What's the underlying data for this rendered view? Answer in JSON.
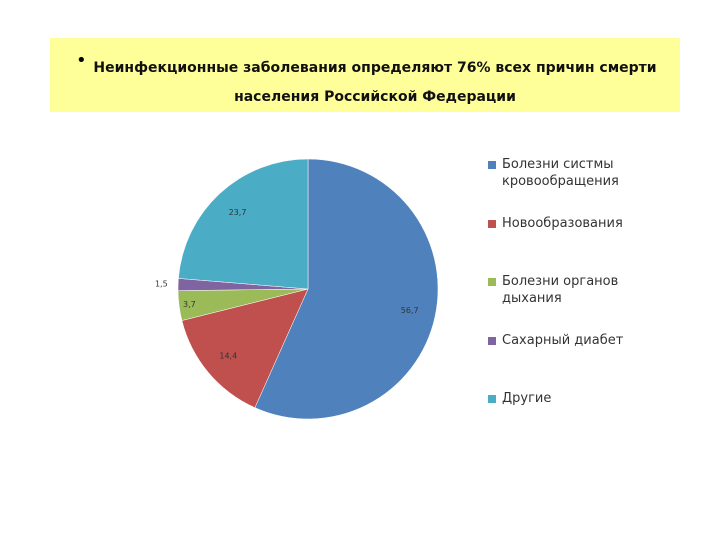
{
  "chart_data": {
    "type": "pie",
    "title": "Неинфекционные заболевания определяют 76% всех причин смерти населения Российской Федерации",
    "categories": [
      "Болезни систмы кровообращения",
      "Новообразования",
      "Болезни органов дыхания",
      "Сахарный диабет",
      "Другие"
    ],
    "values": [
      56.7,
      14.4,
      3.7,
      1.5,
      23.7
    ],
    "value_labels": [
      "56,7",
      "14,4",
      "3,7",
      "1,5",
      "23,7"
    ],
    "colors": [
      "#4f81bd",
      "#c0504d",
      "#9bbb59",
      "#8064a2",
      "#4bacc6"
    ],
    "legend": "right"
  }
}
